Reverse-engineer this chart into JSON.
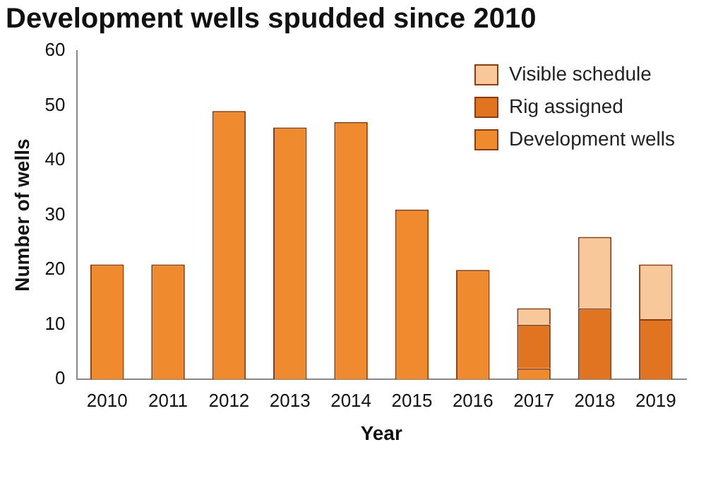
{
  "chart_data": {
    "type": "bar",
    "title": "Development wells spudded since 2010",
    "xlabel": "Year",
    "ylabel": "Number of wells",
    "categories": [
      "2010",
      "2011",
      "2012",
      "2013",
      "2014",
      "2015",
      "2016",
      "2017",
      "2018",
      "2019"
    ],
    "stacked": true,
    "series": [
      {
        "name": "Development wells",
        "color": "#f08a2e",
        "values": [
          21,
          21,
          49,
          46,
          47,
          31,
          20,
          2,
          null,
          null
        ]
      },
      {
        "name": "Rig assigned",
        "color": "#e07420",
        "values": [
          null,
          null,
          null,
          null,
          null,
          null,
          null,
          8,
          13,
          11
        ]
      },
      {
        "name": "Visible schedule",
        "color": "#f9c89a",
        "values": [
          null,
          null,
          null,
          null,
          null,
          null,
          null,
          3,
          13,
          10
        ]
      }
    ],
    "ylim": [
      0,
      60
    ],
    "yticks": [
      0,
      10,
      20,
      30,
      40,
      50,
      60
    ],
    "grid": false,
    "legend": "top right"
  }
}
